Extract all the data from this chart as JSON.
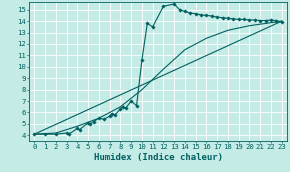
{
  "background_color": "#c5ebe6",
  "grid_color": "#ffffff",
  "line_color": "#006060",
  "xlabel": "Humidex (Indice chaleur)",
  "xlim": [
    -0.5,
    23.5
  ],
  "ylim": [
    3.5,
    15.7
  ],
  "xticks": [
    0,
    1,
    2,
    3,
    4,
    5,
    6,
    7,
    8,
    9,
    10,
    11,
    12,
    13,
    14,
    15,
    16,
    17,
    18,
    19,
    20,
    21,
    22,
    23
  ],
  "yticks": [
    4,
    5,
    6,
    7,
    8,
    9,
    10,
    11,
    12,
    13,
    14,
    15
  ],
  "curve1_x": [
    0,
    1,
    2,
    3,
    3.2,
    4,
    4.2,
    5,
    5.2,
    5.5,
    6,
    6.5,
    7,
    7.2,
    7.5,
    8,
    8.2,
    8.5,
    9,
    9.5,
    10,
    10.5,
    11,
    12,
    13,
    13.5,
    14,
    14.5,
    15,
    15.5,
    16,
    16.5,
    17,
    17.5,
    18,
    18.5,
    19,
    19.5,
    20,
    20.5,
    21,
    21.5,
    22,
    22.5,
    23
  ],
  "curve1_y": [
    4.1,
    4.1,
    4.1,
    4.2,
    4.1,
    4.6,
    4.5,
    5.1,
    5.0,
    5.2,
    5.5,
    5.4,
    5.7,
    5.9,
    5.8,
    6.3,
    6.5,
    6.4,
    7.0,
    6.6,
    10.6,
    13.8,
    13.5,
    15.3,
    15.5,
    15.0,
    14.85,
    14.7,
    14.65,
    14.55,
    14.5,
    14.45,
    14.35,
    14.3,
    14.25,
    14.2,
    14.15,
    14.15,
    14.1,
    14.1,
    14.05,
    14.05,
    14.1,
    14.05,
    13.9
  ],
  "curve2_x": [
    0,
    2,
    4,
    6,
    8,
    10,
    12,
    14,
    16,
    18,
    20,
    23
  ],
  "curve2_y": [
    4.1,
    4.2,
    4.8,
    5.5,
    6.5,
    8.0,
    9.8,
    11.5,
    12.5,
    13.2,
    13.6,
    14.0
  ],
  "curve3_x": [
    0,
    23
  ],
  "curve3_y": [
    4.1,
    14.0
  ],
  "markersize": 1.8,
  "linewidth": 0.8,
  "xlabel_fontsize": 6.5,
  "tick_fontsize": 5.2
}
